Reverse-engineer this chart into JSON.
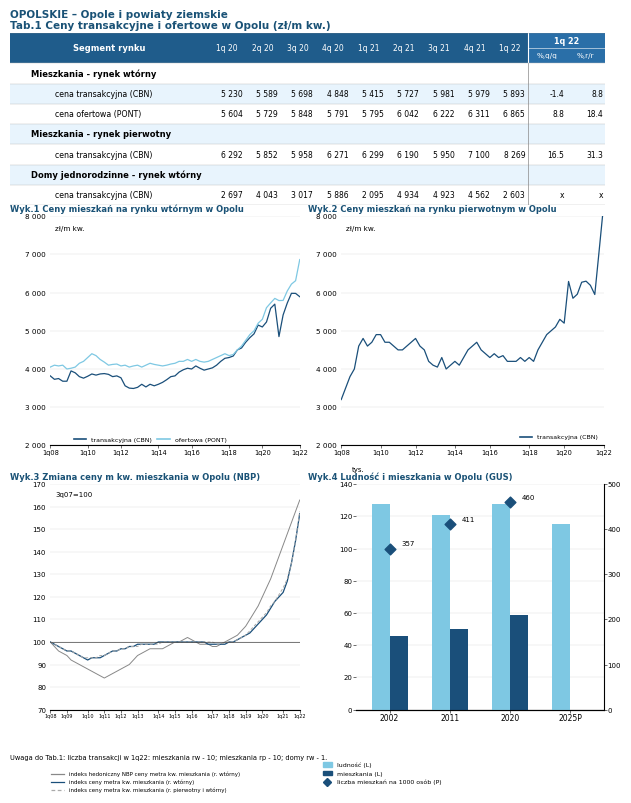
{
  "title_main": "OPOLSKIE – Opole i powiaty ziemskie",
  "title_table": "Tab.1 Ceny transakcyjne i ofertowe w Opolu (zł/m kw.)",
  "table_header_quarters": [
    "1q 20",
    "2q 20",
    "3q 20",
    "4q 20",
    "1q 21",
    "2q 21",
    "3q 21",
    "4q 21",
    "1q 22"
  ],
  "table_rows": [
    {
      "label": "Mieszkania - rynek wtórny",
      "bold": true,
      "values": []
    },
    {
      "label": "cena transakcyjna (CBN)",
      "bold": false,
      "values": [
        "5 230",
        "5 589",
        "5 698",
        "4 848",
        "5 415",
        "5 727",
        "5 981",
        "5 979",
        "5 893",
        "-1.4",
        "8.8"
      ]
    },
    {
      "label": "cena ofertowa (PONT)",
      "bold": false,
      "values": [
        "5 604",
        "5 729",
        "5 848",
        "5 791",
        "5 795",
        "6 042",
        "6 222",
        "6 311",
        "6 865",
        "8.8",
        "18.4"
      ]
    },
    {
      "label": "Mieszkania - rynek pierwotny",
      "bold": true,
      "values": []
    },
    {
      "label": "cena transakcyjna (CBN)",
      "bold": false,
      "values": [
        "6 292",
        "5 852",
        "5 958",
        "6 271",
        "6 299",
        "6 190",
        "5 950",
        "7 100",
        "8 269",
        "16.5",
        "31.3"
      ]
    },
    {
      "label": "Domy jednorodzinne - rynek wtórny",
      "bold": true,
      "values": []
    },
    {
      "label": "cena transakcyjna (CBN)",
      "bold": false,
      "values": [
        "2 697",
        "4 043",
        "3 017",
        "5 886",
        "2 095",
        "4 934",
        "4 923",
        "4 562",
        "2 603",
        "x",
        "x"
      ]
    }
  ],
  "header_bg": "#1f5c8b",
  "header_bg2": "#2a6fa8",
  "row_bgs": [
    "#ffffff",
    "#ddeeff",
    "#ffffff",
    "#ddeeff",
    "#ffffff",
    "#ddeeff",
    "#ffffff"
  ],
  "wyk1_title": "Wyk.1 Ceny mieszkań na rynku wtórnym w Opolu",
  "wyk2_title": "Wyk.2 Ceny mieszkań na rynku pierwotnym w Opolu",
  "wyk3_title": "Wyk.3 Zmiana ceny m kw. mieszkania w Opolu (NBP)",
  "wyk4_title": "Wyk.4 Ludność i mieszkania w Opolu (GUS)",
  "blue_dark": "#1a4f7a",
  "blue_light": "#7ec8e3",
  "gray_line": "#888888",
  "gray_dashed": "#aaaaaa",
  "chart1_trans": [
    3820,
    3730,
    3750,
    3680,
    3680,
    3950,
    3900,
    3800,
    3760,
    3810,
    3870,
    3840,
    3870,
    3880,
    3860,
    3800,
    3820,
    3770,
    3560,
    3500,
    3490,
    3520,
    3600,
    3530,
    3600,
    3560,
    3600,
    3650,
    3720,
    3800,
    3820,
    3920,
    3980,
    4020,
    4000,
    4080,
    4020,
    3970,
    4000,
    4030,
    4100,
    4200,
    4280,
    4300,
    4340,
    4500,
    4550,
    4700,
    4820,
    4920,
    5150,
    5100,
    5230,
    5589,
    5698,
    4848,
    5415,
    5727,
    5981,
    5979,
    5893
  ],
  "chart1_offer": [
    4050,
    4100,
    4080,
    4100,
    4000,
    4020,
    4050,
    4150,
    4200,
    4300,
    4400,
    4350,
    4250,
    4180,
    4100,
    4120,
    4130,
    4080,
    4100,
    4050,
    4080,
    4100,
    4050,
    4100,
    4150,
    4120,
    4100,
    4080,
    4100,
    4130,
    4150,
    4200,
    4200,
    4250,
    4200,
    4250,
    4200,
    4180,
    4200,
    4250,
    4300,
    4350,
    4400,
    4350,
    4380,
    4500,
    4600,
    4750,
    4900,
    5000,
    5200,
    5300,
    5604,
    5729,
    5848,
    5791,
    5795,
    6042,
    6222,
    6311,
    6865
  ],
  "chart2_trans": [
    3200,
    3500,
    3800,
    4000,
    4600,
    4800,
    4600,
    4700,
    4900,
    4900,
    4700,
    4700,
    4600,
    4500,
    4500,
    4600,
    4700,
    4800,
    4600,
    4500,
    4200,
    4100,
    4050,
    4300,
    4000,
    4100,
    4200,
    4100,
    4300,
    4500,
    4600,
    4700,
    4500,
    4400,
    4300,
    4400,
    4300,
    4350,
    4200,
    4200,
    4200,
    4300,
    4200,
    4300,
    4200,
    4500,
    4700,
    4900,
    5000,
    5100,
    5300,
    5200,
    6292,
    5852,
    5958,
    6271,
    6299,
    6190,
    5950,
    7100,
    8269
  ],
  "chart3_hedonic": [
    100,
    98,
    96,
    95,
    94,
    92,
    91,
    90,
    89,
    88,
    87,
    86,
    85,
    84,
    85,
    86,
    87,
    88,
    89,
    90,
    92,
    94,
    95,
    96,
    97,
    97,
    97,
    97,
    98,
    99,
    100,
    100,
    101,
    102,
    101,
    100,
    99,
    99,
    99,
    98,
    98,
    99,
    100,
    101,
    102,
    103,
    105,
    107,
    110,
    113,
    116,
    120,
    124,
    128,
    133,
    138,
    143,
    148,
    153,
    158,
    163
  ],
  "chart3_wtorny": [
    100,
    99,
    98,
    97,
    96,
    96,
    95,
    94,
    93,
    92,
    93,
    93,
    93,
    94,
    95,
    96,
    96,
    97,
    97,
    98,
    98,
    99,
    99,
    99,
    99,
    99,
    100,
    100,
    100,
    100,
    100,
    100,
    100,
    100,
    100,
    100,
    100,
    100,
    99,
    99,
    99,
    99,
    99,
    100,
    100,
    101,
    102,
    103,
    104,
    106,
    108,
    110,
    112,
    115,
    118,
    120,
    122,
    127,
    135,
    145,
    157
  ],
  "chart3_mix": [
    100,
    99,
    98,
    97,
    96,
    96,
    95,
    94,
    93,
    93,
    93,
    93,
    94,
    94,
    95,
    96,
    96,
    97,
    97,
    98,
    98,
    98,
    99,
    99,
    99,
    99,
    99,
    100,
    100,
    100,
    100,
    100,
    100,
    100,
    100,
    100,
    100,
    100,
    100,
    100,
    99,
    99,
    100,
    100,
    100,
    101,
    102,
    103,
    105,
    107,
    109,
    111,
    113,
    116,
    118,
    121,
    124,
    128,
    135,
    145,
    158
  ],
  "chart4_years": [
    "2002",
    "2011",
    "2020",
    "2025P"
  ],
  "chart4_ludnosc": [
    128,
    121,
    128,
    115
  ],
  "chart4_mieszkania": [
    46,
    50,
    59,
    0
  ],
  "chart4_na1000": [
    357,
    411,
    460,
    null
  ],
  "uwaga": "Uwaga do Tab.1: liczba transakcji w 1q22: mieszkania rw - 10; mieszkania rp - 10; domy rw - 1.",
  "wyk_label_unit": "zł/m kw.",
  "wyk3_label": "3q07=100",
  "wyk4_label": "tys.",
  "chart1_xticks": [
    "1q08",
    "1q10",
    "1q12",
    "1q14",
    "1q16",
    "1q18",
    "1q20",
    "1q22"
  ],
  "chart3_xticks": [
    "1q08",
    "1q09",
    "1q10",
    "1q11",
    "1q12",
    "1q13",
    "1q14",
    "1q15",
    "1q16",
    "1q17",
    "1q18",
    "1q19",
    "1q20",
    "1q21",
    "1q22"
  ],
  "chart1_yticks": [
    2000,
    3000,
    4000,
    5000,
    6000,
    7000,
    8000
  ],
  "chart3_yticks": [
    70,
    80,
    90,
    100,
    110,
    120,
    130,
    140,
    150,
    160,
    170
  ],
  "chart4_yticks_L": [
    0,
    20,
    40,
    60,
    80,
    100,
    120,
    140
  ],
  "chart4_yticks_R": [
    0,
    100,
    200,
    300,
    400,
    500
  ]
}
